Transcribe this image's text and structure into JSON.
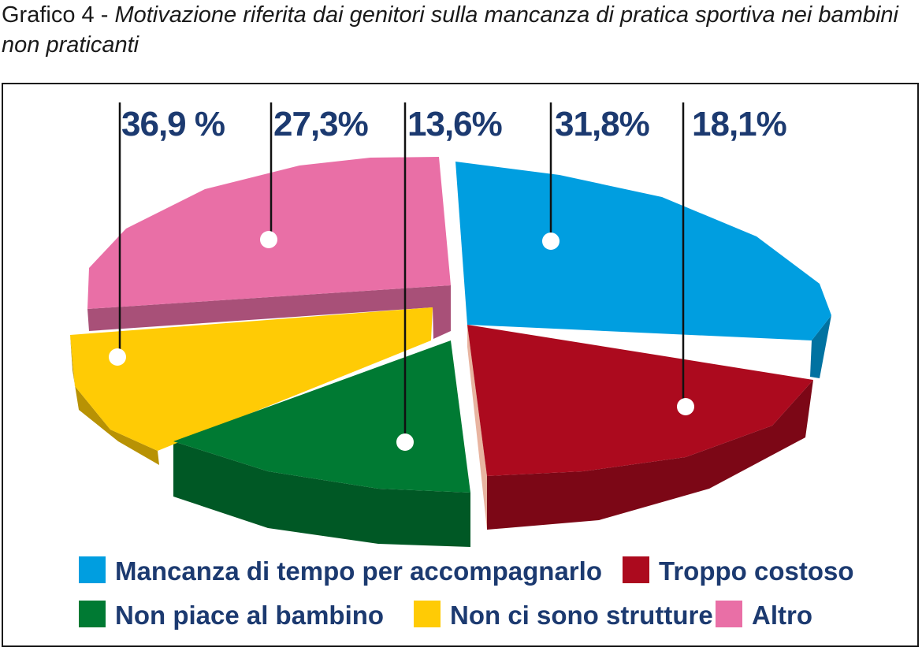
{
  "title": {
    "prefix": "Grafico 4 - ",
    "text": "Motivazione riferita dai genitori sulla mancanza di pratica sportiva nei bambini non praticanti"
  },
  "colors": {
    "label_text": "#1c3a70",
    "pointer_line": "#111111",
    "marker_dot": "#ffffff"
  },
  "chart_data": {
    "type": "pie",
    "style": "3d-exploded",
    "labels_order": [
      "Non ci sono strutture",
      "Altro",
      "Non piace al bambino",
      "Mancanza di tempo per accompagnarlo",
      "Troppo costoso"
    ],
    "slices": [
      {
        "label": "Mancanza di tempo per accompagnarlo",
        "value": 31.8,
        "value_text": "31,8%",
        "color": "#009ee0"
      },
      {
        "label": "Troppo costoso",
        "value": 18.1,
        "value_text": "18,1%",
        "color": "#ac0a1e"
      },
      {
        "label": "Non piace al bambino",
        "value": 13.6,
        "value_text": "13,6%",
        "color": "#007a33"
      },
      {
        "label": "Non ci sono strutture",
        "value": 36.9,
        "value_text": "36,9 %",
        "color": "#ffcb05"
      },
      {
        "label": "Altro",
        "value": 27.3,
        "value_text": "27,3%",
        "color": "#e96fa6"
      }
    ],
    "legend": [
      {
        "label": "Mancanza di tempo per accompagnarlo",
        "color": "#009ee0"
      },
      {
        "label": "Troppo costoso",
        "color": "#ac0a1e"
      },
      {
        "label": "Non piace al bambino",
        "color": "#007a33"
      },
      {
        "label": "Non ci sono strutture",
        "color": "#ffcb05"
      },
      {
        "label": "Altro",
        "color": "#e96fa6"
      }
    ],
    "legend_placement": "bottom"
  }
}
